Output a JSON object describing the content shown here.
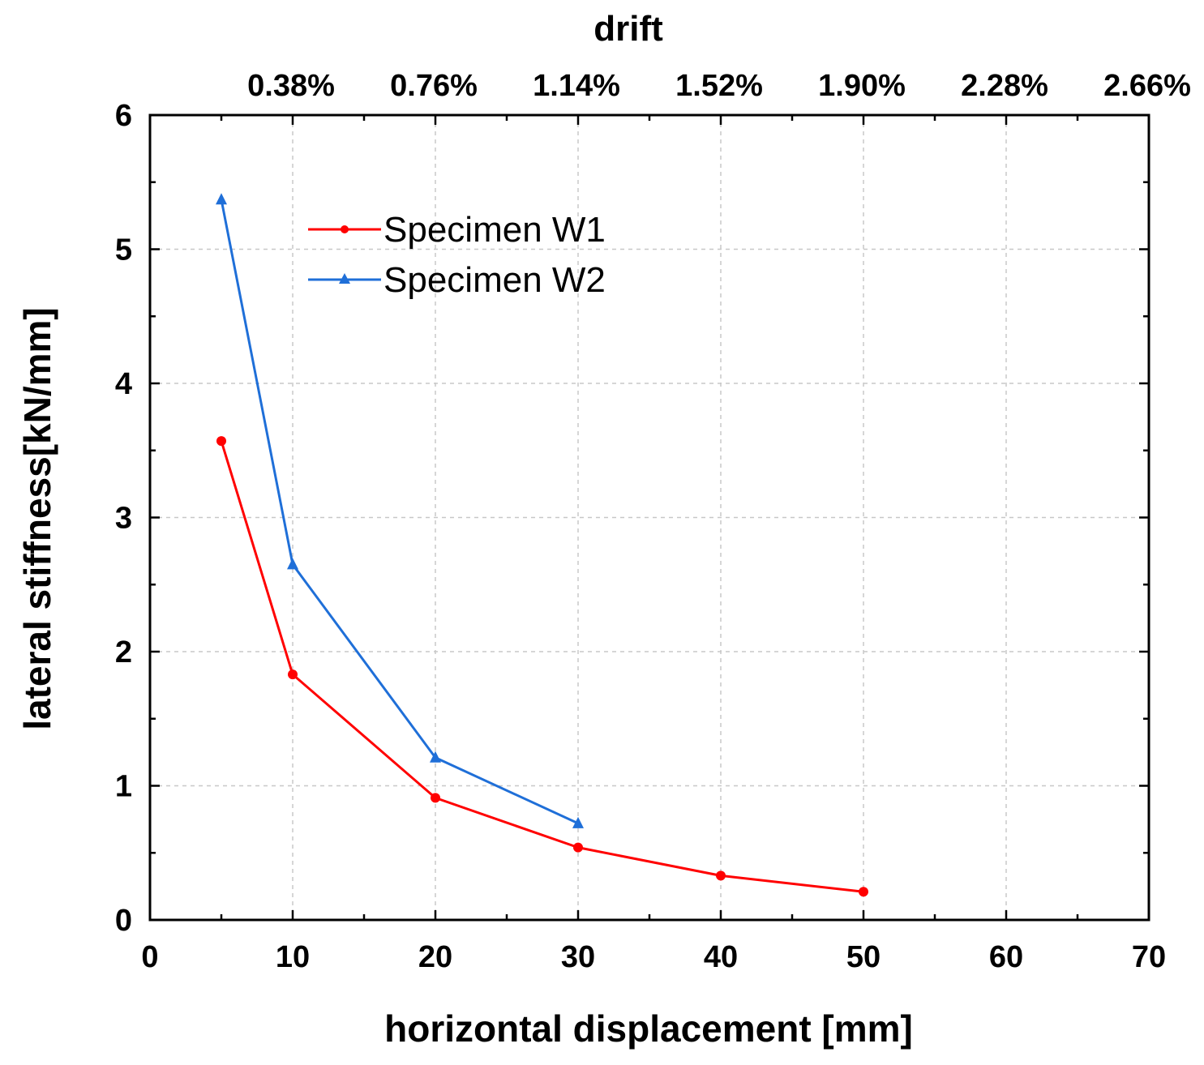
{
  "chart_data": {
    "type": "line",
    "title": "",
    "xlabel": "horizontal displacement [mm]",
    "ylabel": "lateral stiffness[kN/mm]",
    "top_axis_label": "drift",
    "xlim": [
      0,
      70
    ],
    "ylim": [
      0,
      6
    ],
    "x_ticks": [
      "0",
      "10",
      "20",
      "30",
      "40",
      "50",
      "60",
      "70"
    ],
    "y_ticks": [
      "0",
      "1",
      "2",
      "3",
      "4",
      "5",
      "6"
    ],
    "top_ticks": [
      {
        "x": 10,
        "label": "0.38%"
      },
      {
        "x": 20,
        "label": "0.76%"
      },
      {
        "x": 30,
        "label": "1.14%"
      },
      {
        "x": 40,
        "label": "1.52%"
      },
      {
        "x": 50,
        "label": "1.90%"
      },
      {
        "x": 60,
        "label": "2.28%"
      },
      {
        "x": 70,
        "label": "2.66%"
      }
    ],
    "grid": true,
    "legend_position": "upper-left",
    "series": [
      {
        "name": "Specimen W1",
        "color": "#ff0000",
        "marker": "circle",
        "x": [
          5,
          10,
          20,
          30,
          40,
          50
        ],
        "y": [
          3.57,
          1.83,
          0.91,
          0.54,
          0.33,
          0.21
        ]
      },
      {
        "name": "Specimen W2",
        "color": "#1f6fd8",
        "marker": "triangle",
        "x": [
          5,
          10,
          20,
          30
        ],
        "y": [
          5.37,
          2.65,
          1.21,
          0.72
        ]
      }
    ]
  }
}
